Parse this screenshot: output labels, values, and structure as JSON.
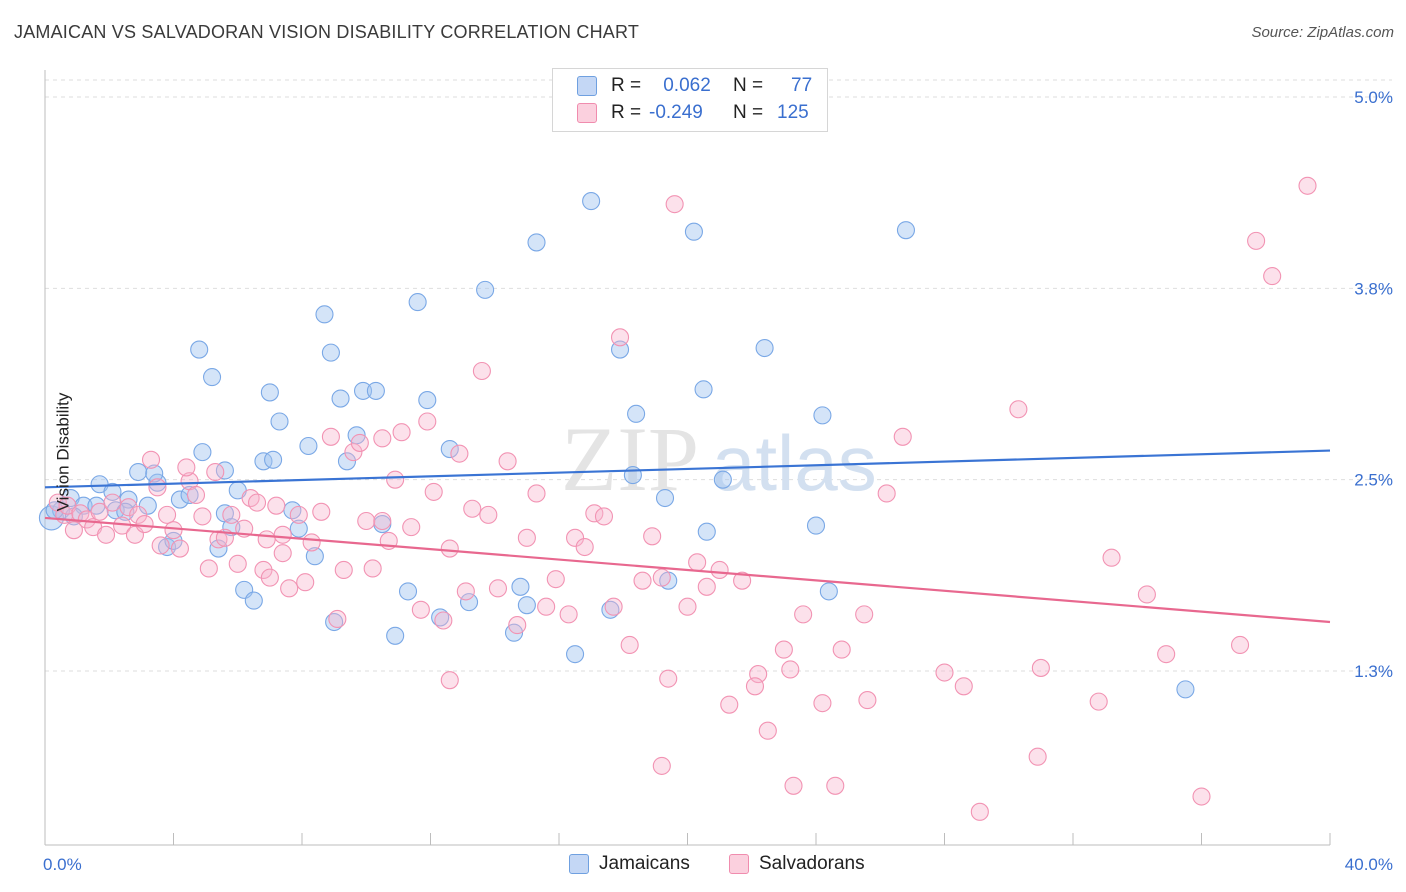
{
  "title": "JAMAICAN VS SALVADORAN VISION DISABILITY CORRELATION CHART",
  "source": "Source: ZipAtlas.com",
  "watermark": "ZIPatlas",
  "legend": {
    "rows": [
      {
        "r_label": "R =",
        "r_value": "0.062",
        "n_label": "N =",
        "n_value": "77",
        "color": "#6fa0e0",
        "fill": "#c4d7f5"
      },
      {
        "r_label": "R =",
        "r_value": "-0.249",
        "n_label": "N =",
        "n_value": "125",
        "color": "#f08cae",
        "fill": "#fbd0de"
      }
    ]
  },
  "bottom_legend": [
    {
      "label": "Jamaicans",
      "color": "#6fa0e0",
      "fill": "#c4d7f5"
    },
    {
      "label": "Salvadorans",
      "color": "#f08cae",
      "fill": "#fbd0de"
    }
  ],
  "chart_data": {
    "type": "scatter",
    "title": "JAMAICAN VS SALVADORAN VISION DISABILITY CORRELATION CHART",
    "xlabel": "",
    "ylabel": "Vision Disability",
    "x_tick_labels": [
      "0.0%",
      "40.0%"
    ],
    "y_tick_labels": [
      "1.3%",
      "2.5%",
      "3.8%",
      "5.0%"
    ],
    "y_ticks": [
      1.25,
      2.5,
      3.75,
      5.0
    ],
    "xlim": [
      0,
      40
    ],
    "ylim": [
      0.0,
      5.1
    ],
    "grid": true,
    "series": [
      {
        "name": "Jamaicans",
        "color": "#3a74d4",
        "point_color": "#7aa8e6",
        "trend": [
          [
            0,
            2.45
          ],
          [
            40,
            2.69
          ]
        ],
        "points": [
          [
            0.2,
            2.25
          ],
          [
            0.5,
            2.3
          ],
          [
            0.8,
            2.38
          ],
          [
            1.2,
            2.33
          ],
          [
            1.7,
            2.47
          ],
          [
            2.2,
            2.3
          ],
          [
            2.6,
            2.37
          ],
          [
            3.2,
            2.33
          ],
          [
            3.5,
            2.48
          ],
          [
            3.8,
            2.06
          ],
          [
            4.0,
            2.1
          ],
          [
            4.2,
            2.37
          ],
          [
            4.5,
            2.4
          ],
          [
            4.8,
            3.35
          ],
          [
            4.9,
            2.68
          ],
          [
            5.2,
            3.17
          ],
          [
            5.4,
            2.05
          ],
          [
            5.6,
            2.28
          ],
          [
            5.8,
            2.19
          ],
          [
            6.0,
            2.43
          ],
          [
            6.2,
            1.78
          ],
          [
            6.5,
            1.71
          ],
          [
            6.8,
            2.62
          ],
          [
            7.0,
            3.07
          ],
          [
            7.1,
            2.63
          ],
          [
            7.3,
            2.88
          ],
          [
            7.7,
            2.3
          ],
          [
            7.9,
            2.18
          ],
          [
            8.2,
            2.72
          ],
          [
            8.4,
            2.0
          ],
          [
            8.7,
            3.58
          ],
          [
            8.9,
            3.33
          ],
          [
            9.0,
            1.57
          ],
          [
            9.2,
            3.03
          ],
          [
            9.4,
            2.62
          ],
          [
            9.7,
            2.79
          ],
          [
            9.9,
            3.08
          ],
          [
            10.3,
            3.08
          ],
          [
            10.5,
            2.21
          ],
          [
            10.9,
            1.48
          ],
          [
            11.3,
            1.77
          ],
          [
            11.6,
            3.66
          ],
          [
            11.9,
            3.02
          ],
          [
            12.3,
            1.6
          ],
          [
            12.6,
            2.7
          ],
          [
            13.2,
            1.7
          ],
          [
            13.7,
            3.74
          ],
          [
            14.6,
            1.5
          ],
          [
            14.8,
            1.8
          ],
          [
            15.0,
            1.68
          ],
          [
            15.3,
            4.05
          ],
          [
            16.5,
            1.36
          ],
          [
            17.0,
            4.32
          ],
          [
            17.6,
            1.65
          ],
          [
            17.9,
            3.35
          ],
          [
            18.3,
            2.53
          ],
          [
            18.4,
            2.93
          ],
          [
            19.3,
            2.38
          ],
          [
            19.4,
            1.84
          ],
          [
            20.2,
            4.12
          ],
          [
            20.5,
            3.09
          ],
          [
            20.6,
            2.16
          ],
          [
            21.1,
            2.5
          ],
          [
            22.4,
            3.36
          ],
          [
            24.0,
            2.2
          ],
          [
            24.2,
            2.92
          ],
          [
            24.4,
            1.77
          ],
          [
            26.8,
            4.13
          ],
          [
            35.5,
            1.13
          ],
          [
            0.3,
            2.3
          ],
          [
            0.9,
            2.26
          ],
          [
            1.6,
            2.33
          ],
          [
            2.1,
            2.42
          ],
          [
            2.5,
            2.29
          ],
          [
            2.9,
            2.55
          ],
          [
            5.6,
            2.56
          ],
          [
            3.4,
            2.54
          ]
        ]
      },
      {
        "name": "Salvadorans",
        "color": "#e8688f",
        "point_color": "#f293b3",
        "trend": [
          [
            0,
            2.25
          ],
          [
            40,
            1.57
          ]
        ],
        "points": [
          [
            0.4,
            2.35
          ],
          [
            0.6,
            2.27
          ],
          [
            0.7,
            2.33
          ],
          [
            0.9,
            2.17
          ],
          [
            1.1,
            2.28
          ],
          [
            1.3,
            2.24
          ],
          [
            1.5,
            2.19
          ],
          [
            1.7,
            2.29
          ],
          [
            1.9,
            2.14
          ],
          [
            2.1,
            2.35
          ],
          [
            2.4,
            2.2
          ],
          [
            2.6,
            2.32
          ],
          [
            2.8,
            2.14
          ],
          [
            2.9,
            2.27
          ],
          [
            3.1,
            2.21
          ],
          [
            3.3,
            2.63
          ],
          [
            3.5,
            2.45
          ],
          [
            3.6,
            2.07
          ],
          [
            3.8,
            2.27
          ],
          [
            4.0,
            2.17
          ],
          [
            4.2,
            2.05
          ],
          [
            4.5,
            2.49
          ],
          [
            4.7,
            2.4
          ],
          [
            4.9,
            2.26
          ],
          [
            5.1,
            1.92
          ],
          [
            5.3,
            2.55
          ],
          [
            5.4,
            2.11
          ],
          [
            5.6,
            2.12
          ],
          [
            5.8,
            2.27
          ],
          [
            6.0,
            1.95
          ],
          [
            6.2,
            2.18
          ],
          [
            6.4,
            2.38
          ],
          [
            6.6,
            2.35
          ],
          [
            6.8,
            1.91
          ],
          [
            6.9,
            2.11
          ],
          [
            7.0,
            1.86
          ],
          [
            7.2,
            2.33
          ],
          [
            7.4,
            2.02
          ],
          [
            7.6,
            1.79
          ],
          [
            7.9,
            2.27
          ],
          [
            8.1,
            1.83
          ],
          [
            8.3,
            2.09
          ],
          [
            8.6,
            2.29
          ],
          [
            8.9,
            2.78
          ],
          [
            9.1,
            1.59
          ],
          [
            9.3,
            1.91
          ],
          [
            9.6,
            2.68
          ],
          [
            9.8,
            2.74
          ],
          [
            10.0,
            2.23
          ],
          [
            10.2,
            1.92
          ],
          [
            10.5,
            2.23
          ],
          [
            10.7,
            2.1
          ],
          [
            10.9,
            2.5
          ],
          [
            11.1,
            2.81
          ],
          [
            11.4,
            2.19
          ],
          [
            11.7,
            1.65
          ],
          [
            11.9,
            2.88
          ],
          [
            12.1,
            2.42
          ],
          [
            12.4,
            1.58
          ],
          [
            12.6,
            1.19
          ],
          [
            12.9,
            2.67
          ],
          [
            13.1,
            1.77
          ],
          [
            13.3,
            2.31
          ],
          [
            13.6,
            3.21
          ],
          [
            13.8,
            2.27
          ],
          [
            14.1,
            1.79
          ],
          [
            14.4,
            2.62
          ],
          [
            14.7,
            1.55
          ],
          [
            15.0,
            2.12
          ],
          [
            15.3,
            2.41
          ],
          [
            15.6,
            1.67
          ],
          [
            15.9,
            1.85
          ],
          [
            16.3,
            1.62
          ],
          [
            16.5,
            2.12
          ],
          [
            16.8,
            2.06
          ],
          [
            17.1,
            2.28
          ],
          [
            17.4,
            2.26
          ],
          [
            17.7,
            1.67
          ],
          [
            17.9,
            3.43
          ],
          [
            18.2,
            1.42
          ],
          [
            18.6,
            1.84
          ],
          [
            18.9,
            2.13
          ],
          [
            19.2,
            1.86
          ],
          [
            19.4,
            1.2
          ],
          [
            19.6,
            4.3
          ],
          [
            20.0,
            1.67
          ],
          [
            20.3,
            1.96
          ],
          [
            20.6,
            1.8
          ],
          [
            21.3,
            1.03
          ],
          [
            21.7,
            1.84
          ],
          [
            22.2,
            1.23
          ],
          [
            22.5,
            0.86
          ],
          [
            23.0,
            1.39
          ],
          [
            23.2,
            1.26
          ],
          [
            23.6,
            1.62
          ],
          [
            24.2,
            1.04
          ],
          [
            24.8,
            1.39
          ],
          [
            25.5,
            1.62
          ],
          [
            26.2,
            2.41
          ],
          [
            26.7,
            2.78
          ],
          [
            28.0,
            1.24
          ],
          [
            28.6,
            1.15
          ],
          [
            29.1,
            0.33
          ],
          [
            30.3,
            2.96
          ],
          [
            30.9,
            0.69
          ],
          [
            31.0,
            1.27
          ],
          [
            32.8,
            1.05
          ],
          [
            33.2,
            1.99
          ],
          [
            34.3,
            1.75
          ],
          [
            34.9,
            1.36
          ],
          [
            36.0,
            0.43
          ],
          [
            37.2,
            1.42
          ],
          [
            37.7,
            4.06
          ],
          [
            38.2,
            3.83
          ],
          [
            39.3,
            4.42
          ],
          [
            21.0,
            1.91
          ],
          [
            22.1,
            1.15
          ],
          [
            23.3,
            0.5
          ],
          [
            24.6,
            0.5
          ],
          [
            25.6,
            1.06
          ],
          [
            19.2,
            0.63
          ],
          [
            7.4,
            2.14
          ],
          [
            10.5,
            2.77
          ],
          [
            12.6,
            2.05
          ],
          [
            4.4,
            2.58
          ]
        ]
      }
    ]
  }
}
